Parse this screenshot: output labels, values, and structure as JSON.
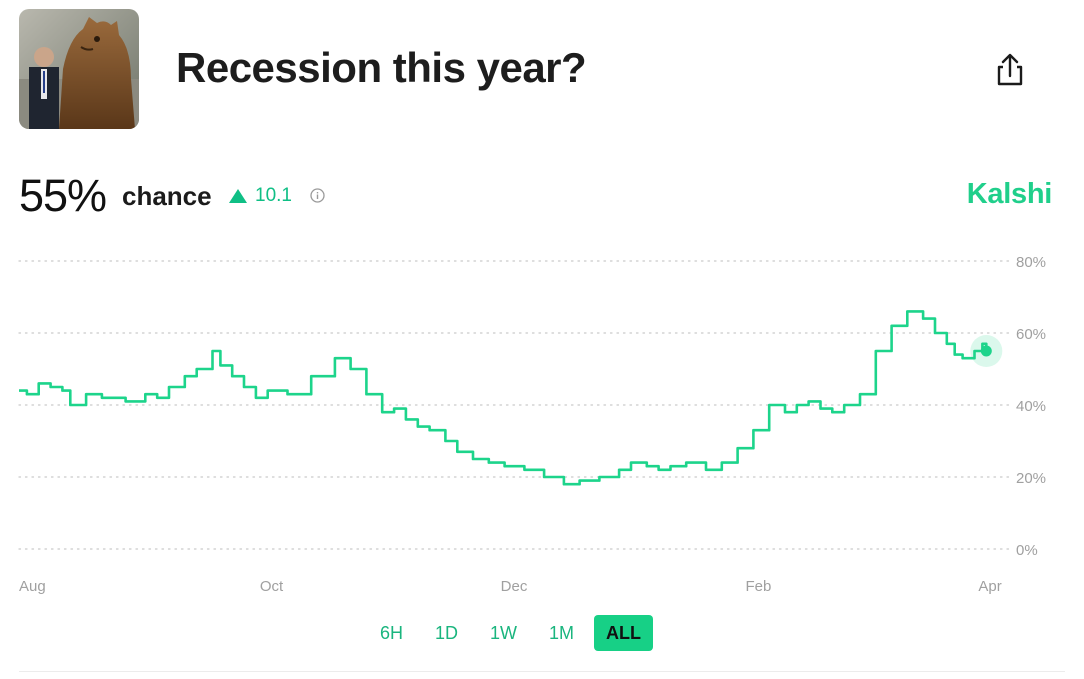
{
  "header": {
    "title": "Recession this year?",
    "thumbnail_icon": "bear-statue-photo",
    "share_icon": "share-icon"
  },
  "stats": {
    "percent": "55%",
    "chance_label": "chance",
    "delta": "10.1",
    "delta_direction": "up",
    "info_icon": "info-icon",
    "brand": "Kalshi"
  },
  "colors": {
    "accent": "#1dd48b",
    "accent_text": "#0fbf85",
    "grid": "#c9c9c9",
    "axis_text": "#a0a0a0"
  },
  "tabs": [
    {
      "label": "6H",
      "active": false
    },
    {
      "label": "1D",
      "active": false
    },
    {
      "label": "1W",
      "active": false
    },
    {
      "label": "1M",
      "active": false
    },
    {
      "label": "ALL",
      "active": true
    }
  ],
  "chart_data": {
    "type": "line",
    "x_tick_labels": [
      "Aug",
      "Oct",
      "Dec",
      "Feb",
      "Apr"
    ],
    "x_tick_dates": [
      "2024-08-01",
      "2024-10-01",
      "2024-12-01",
      "2025-02-01",
      "2025-04-01"
    ],
    "xlim": [
      "2024-08-01",
      "2025-04-09"
    ],
    "ylim": [
      0,
      80
    ],
    "yticks": [
      0,
      20,
      40,
      60,
      80
    ],
    "y_tick_labels": [
      "0%",
      "20%",
      "40%",
      "60%",
      "80%"
    ],
    "grid": true,
    "grid_style": "dotted-horizontal",
    "y_axis_side": "right",
    "series": [
      {
        "x": [
          "2024-08-01",
          "2024-08-03",
          "2024-08-06",
          "2024-08-09",
          "2024-08-12",
          "2024-08-14",
          "2024-08-18",
          "2024-08-22",
          "2024-08-28",
          "2024-09-02",
          "2024-09-05",
          "2024-09-08",
          "2024-09-12",
          "2024-09-15",
          "2024-09-19",
          "2024-09-21",
          "2024-09-24",
          "2024-09-27",
          "2024-09-30",
          "2024-10-03",
          "2024-10-08",
          "2024-10-14",
          "2024-10-20",
          "2024-10-24",
          "2024-10-28",
          "2024-11-01",
          "2024-11-04",
          "2024-11-07",
          "2024-11-10",
          "2024-11-13",
          "2024-11-17",
          "2024-11-20",
          "2024-11-24",
          "2024-11-28",
          "2024-12-02",
          "2024-12-07",
          "2024-12-12",
          "2024-12-17",
          "2024-12-21",
          "2024-12-26",
          "2024-12-31",
          "2025-01-03",
          "2025-01-07",
          "2025-01-10",
          "2025-01-13",
          "2025-01-17",
          "2025-01-22",
          "2025-01-26",
          "2025-01-30",
          "2025-02-03",
          "2025-02-07",
          "2025-02-11",
          "2025-02-14",
          "2025-02-17",
          "2025-02-20",
          "2025-02-23",
          "2025-02-26",
          "2025-03-02",
          "2025-03-06",
          "2025-03-10",
          "2025-03-14",
          "2025-03-18",
          "2025-03-21",
          "2025-03-24",
          "2025-03-26",
          "2025-03-28",
          "2025-03-31",
          "2025-04-02",
          "2025-04-03"
        ],
        "y": [
          44,
          43,
          46,
          45,
          44,
          40,
          43,
          42,
          41,
          43,
          42,
          45,
          48,
          50,
          55,
          51,
          48,
          45,
          42,
          44,
          43,
          48,
          53,
          50,
          43,
          38,
          39,
          36,
          34,
          33,
          30,
          27,
          25,
          24,
          23,
          22,
          20,
          18,
          19,
          20,
          22,
          24,
          23,
          22,
          23,
          24,
          22,
          24,
          28,
          33,
          40,
          38,
          40,
          41,
          39,
          38,
          40,
          43,
          55,
          62,
          66,
          64,
          60,
          57,
          54,
          53,
          55,
          57,
          55
        ]
      }
    ],
    "last_value": 55
  }
}
